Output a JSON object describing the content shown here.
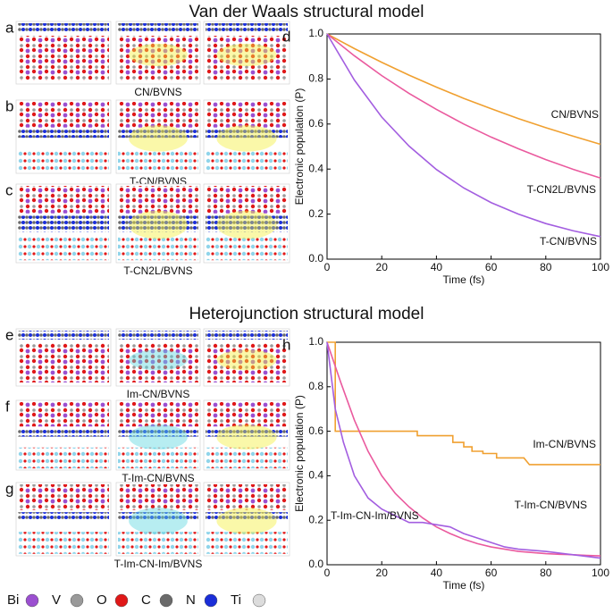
{
  "titles": [
    "Van der Waals structural model",
    "Heterojunction structural model"
  ],
  "panels": [
    {
      "letter": "a",
      "caption": "CN/BVNS"
    },
    {
      "letter": "b",
      "caption": "T-CN/BVNS"
    },
    {
      "letter": "c",
      "caption": "T-CN2L/BVNS"
    },
    {
      "letter": "e",
      "caption": "Im-CN/BVNS"
    },
    {
      "letter": "f",
      "caption": "T-Im-CN/BVNS"
    },
    {
      "letter": "g",
      "caption": "T-Im-CN-Im/BVNS"
    }
  ],
  "atom_legend": [
    {
      "label": "Bi",
      "color": "#9b4fd0"
    },
    {
      "label": "V",
      "color": "#9a9a9a"
    },
    {
      "label": "O",
      "color": "#e01818"
    },
    {
      "label": "C",
      "color": "#6a6a6a"
    },
    {
      "label": "N",
      "color": "#1a2ed8"
    },
    {
      "label": "Ti",
      "color": "#dcdcdc"
    }
  ],
  "chart_data": [
    {
      "type": "line",
      "panel_label": "d",
      "xlabel": "Time (fs)",
      "ylabel": "Electronic population (P)",
      "xlim": [
        0,
        100
      ],
      "ylim": [
        0,
        1
      ],
      "xticks": [
        0,
        20,
        40,
        60,
        80,
        100
      ],
      "yticks": [
        {
          "value": 0,
          "label": "0.0"
        },
        0.2,
        0.4,
        0.6,
        0.8,
        {
          "value": 1,
          "label": "1.0"
        }
      ],
      "x": [
        0,
        10,
        20,
        30,
        40,
        50,
        60,
        70,
        80,
        90,
        100
      ],
      "series": [
        {
          "name": "CN/BVNS",
          "color": "#f0a030",
          "values": [
            1,
            0.935,
            0.874,
            0.817,
            0.764,
            0.714,
            0.668,
            0.624,
            0.584,
            0.546,
            0.51
          ]
        },
        {
          "name": "T-CN2L/BVNS",
          "color": "#ea5a9e",
          "values": [
            1,
            0.903,
            0.815,
            0.736,
            0.665,
            0.6,
            0.542,
            0.49,
            0.442,
            0.399,
            0.36
          ]
        },
        {
          "name": "T-CN/BVNS",
          "color": "#a35ee0",
          "values": [
            1,
            0.795,
            0.631,
            0.502,
            0.398,
            0.316,
            0.251,
            0.2,
            0.158,
            0.126,
            0.1
          ]
        }
      ]
    },
    {
      "type": "line",
      "panel_label": "h",
      "xlabel": "Time (fs)",
      "ylabel": "Electronic population (P)",
      "xlim": [
        0,
        100
      ],
      "ylim": [
        0,
        1
      ],
      "xticks": [
        0,
        20,
        40,
        60,
        80,
        100
      ],
      "yticks": [
        {
          "value": 0,
          "label": "0.0"
        },
        0.2,
        0.4,
        0.6,
        0.8,
        {
          "value": 1,
          "label": "1.0"
        }
      ],
      "series": [
        {
          "name": "Im-CN/BVNS",
          "color": "#f0a030",
          "x": [
            0,
            3,
            3,
            33,
            33,
            46,
            46,
            50,
            50,
            53,
            53,
            57,
            57,
            62,
            62,
            72,
            74,
            100
          ],
          "values": [
            1,
            1,
            0.6,
            0.6,
            0.58,
            0.58,
            0.55,
            0.55,
            0.53,
            0.53,
            0.51,
            0.51,
            0.5,
            0.5,
            0.48,
            0.48,
            0.45,
            0.45
          ]
        },
        {
          "name": "T-Im-CN/BVNS",
          "color": "#ea5a9e",
          "x": [
            0,
            5,
            10,
            15,
            20,
            25,
            30,
            35,
            40,
            45,
            50,
            55,
            60,
            65,
            70,
            75,
            80,
            85,
            90,
            95,
            100
          ],
          "values": [
            1,
            0.82,
            0.65,
            0.51,
            0.4,
            0.32,
            0.26,
            0.21,
            0.17,
            0.14,
            0.115,
            0.095,
            0.08,
            0.07,
            0.06,
            0.055,
            0.05,
            0.047,
            0.045,
            0.042,
            0.04
          ]
        },
        {
          "name": "T-Im-CN-Im/BVNS",
          "color": "#a35ee0",
          "x": [
            0,
            3,
            6,
            10,
            15,
            20,
            25,
            30,
            35,
            40,
            45,
            50,
            55,
            60,
            65,
            70,
            80,
            90,
            100
          ],
          "values": [
            1,
            0.7,
            0.55,
            0.4,
            0.3,
            0.25,
            0.22,
            0.19,
            0.19,
            0.18,
            0.17,
            0.14,
            0.12,
            0.1,
            0.08,
            0.07,
            0.06,
            0.045,
            0.03
          ]
        }
      ]
    }
  ]
}
